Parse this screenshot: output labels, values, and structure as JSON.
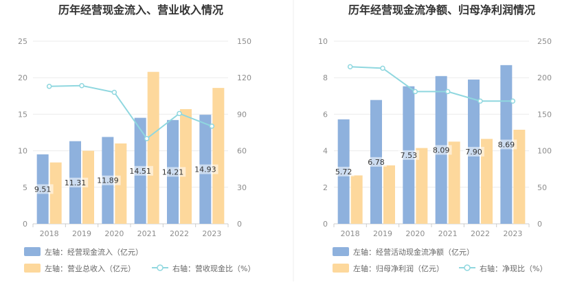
{
  "chart_data": [
    {
      "type": "bar",
      "title": "历年经营现金流入、营业收入情况",
      "categories": [
        "2018",
        "2019",
        "2020",
        "2021",
        "2022",
        "2023"
      ],
      "left_axis": {
        "ylim": [
          0,
          25
        ],
        "ticks": [
          "0",
          "5",
          "10",
          "15",
          "20",
          "25"
        ]
      },
      "right_axis": {
        "ylim": [
          0,
          150
        ],
        "ticks": [
          "0",
          "30",
          "60",
          "90",
          "120",
          "150"
        ]
      },
      "series": [
        {
          "name": "左轴：经营现金流入（亿元）",
          "type": "bar",
          "axis": "left",
          "color": "#8eb1dd",
          "values": [
            9.51,
            11.31,
            11.89,
            14.51,
            14.21,
            14.93
          ],
          "labels": [
            "9.51",
            "11.31",
            "11.89",
            "14.51",
            "14.21",
            "14.93"
          ]
        },
        {
          "name": "左轴：营业总收入（亿元）",
          "type": "bar",
          "axis": "left",
          "color": "#fdd89c",
          "values": [
            8.4,
            10.0,
            11.0,
            20.8,
            15.7,
            18.6
          ]
        },
        {
          "name": "右轴：营收现金比（%）",
          "type": "line",
          "axis": "right",
          "color": "#8fd7df",
          "values": [
            112.9,
            113.5,
            108.0,
            70.0,
            90.6,
            80.2
          ]
        }
      ]
    },
    {
      "type": "bar",
      "title": "历年经营现金流净额、归母净利润情况",
      "categories": [
        "2018",
        "2019",
        "2020",
        "2021",
        "2022",
        "2023"
      ],
      "left_axis": {
        "ylim": [
          0,
          10
        ],
        "ticks": [
          "0",
          "2",
          "4",
          "6",
          "8",
          "10"
        ]
      },
      "right_axis": {
        "ylim": [
          0,
          250
        ],
        "ticks": [
          "0",
          "50",
          "100",
          "150",
          "200",
          "250"
        ]
      },
      "series": [
        {
          "name": "左轴：经营活动现金流净额（亿元）",
          "type": "bar",
          "axis": "left",
          "color": "#8eb1dd",
          "values": [
            5.72,
            6.78,
            7.53,
            8.09,
            7.9,
            8.69
          ],
          "labels": [
            "5.72",
            "6.78",
            "7.53",
            "8.09",
            "7.90",
            "8.69"
          ]
        },
        {
          "name": "左轴：归母净利润（亿元）",
          "type": "bar",
          "axis": "left",
          "color": "#fdd89c",
          "values": [
            2.65,
            3.2,
            4.15,
            4.5,
            4.65,
            5.15
          ]
        },
        {
          "name": "右轴：净现比（%）",
          "type": "line",
          "axis": "right",
          "color": "#8fd7df",
          "values": [
            215.0,
            213.0,
            181.0,
            181.0,
            168.0,
            168.0
          ]
        }
      ]
    }
  ]
}
